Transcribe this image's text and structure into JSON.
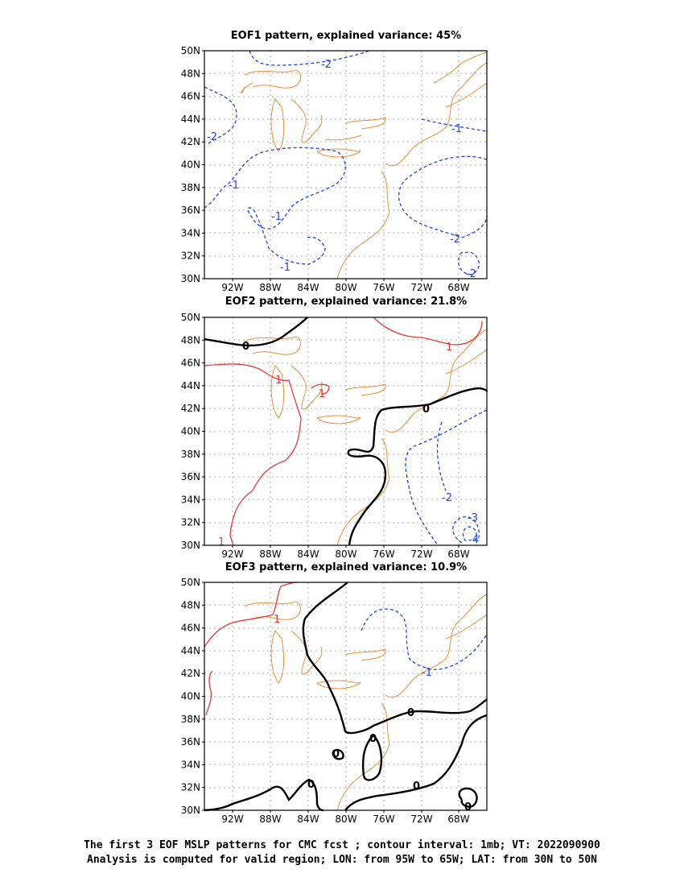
{
  "panels": [
    {
      "title": "EOF1 pattern, explained variance: 45%",
      "contour_labels": [
        "-2",
        "-2",
        "-1",
        "-1",
        "-1",
        "-1",
        "-2",
        "-2"
      ]
    },
    {
      "title": "EOF2 pattern, explained variance: 21.8%",
      "contour_labels": [
        "0",
        "0",
        "1",
        "1",
        "1",
        "1",
        "-2",
        "-3",
        "-4"
      ]
    },
    {
      "title": "EOF3 pattern, explained variance: 10.9%",
      "contour_labels": [
        "1",
        "-1",
        "0",
        "0",
        "0",
        "0",
        "0",
        "0"
      ]
    }
  ],
  "axes": {
    "lat_ticks": [
      "50N",
      "48N",
      "46N",
      "44N",
      "42N",
      "40N",
      "38N",
      "36N",
      "34N",
      "32N",
      "30N"
    ],
    "lon_ticks": [
      "92W",
      "88W",
      "84W",
      "80W",
      "76W",
      "72W",
      "68W"
    ]
  },
  "caption": {
    "line1": "The first 3 EOF MSLP patterns for CMC fcst ; contour interval: 1mb; VT: 2022090900",
    "line2": "Analysis is computed for valid region; LON: from 95W to 65W; LAT: from 30N to 50N"
  },
  "colors": {
    "coast": "#e8903c",
    "negative": "#2244dd",
    "positive": "#e23b3b",
    "zero": "#000000",
    "grid": "#999999"
  }
}
